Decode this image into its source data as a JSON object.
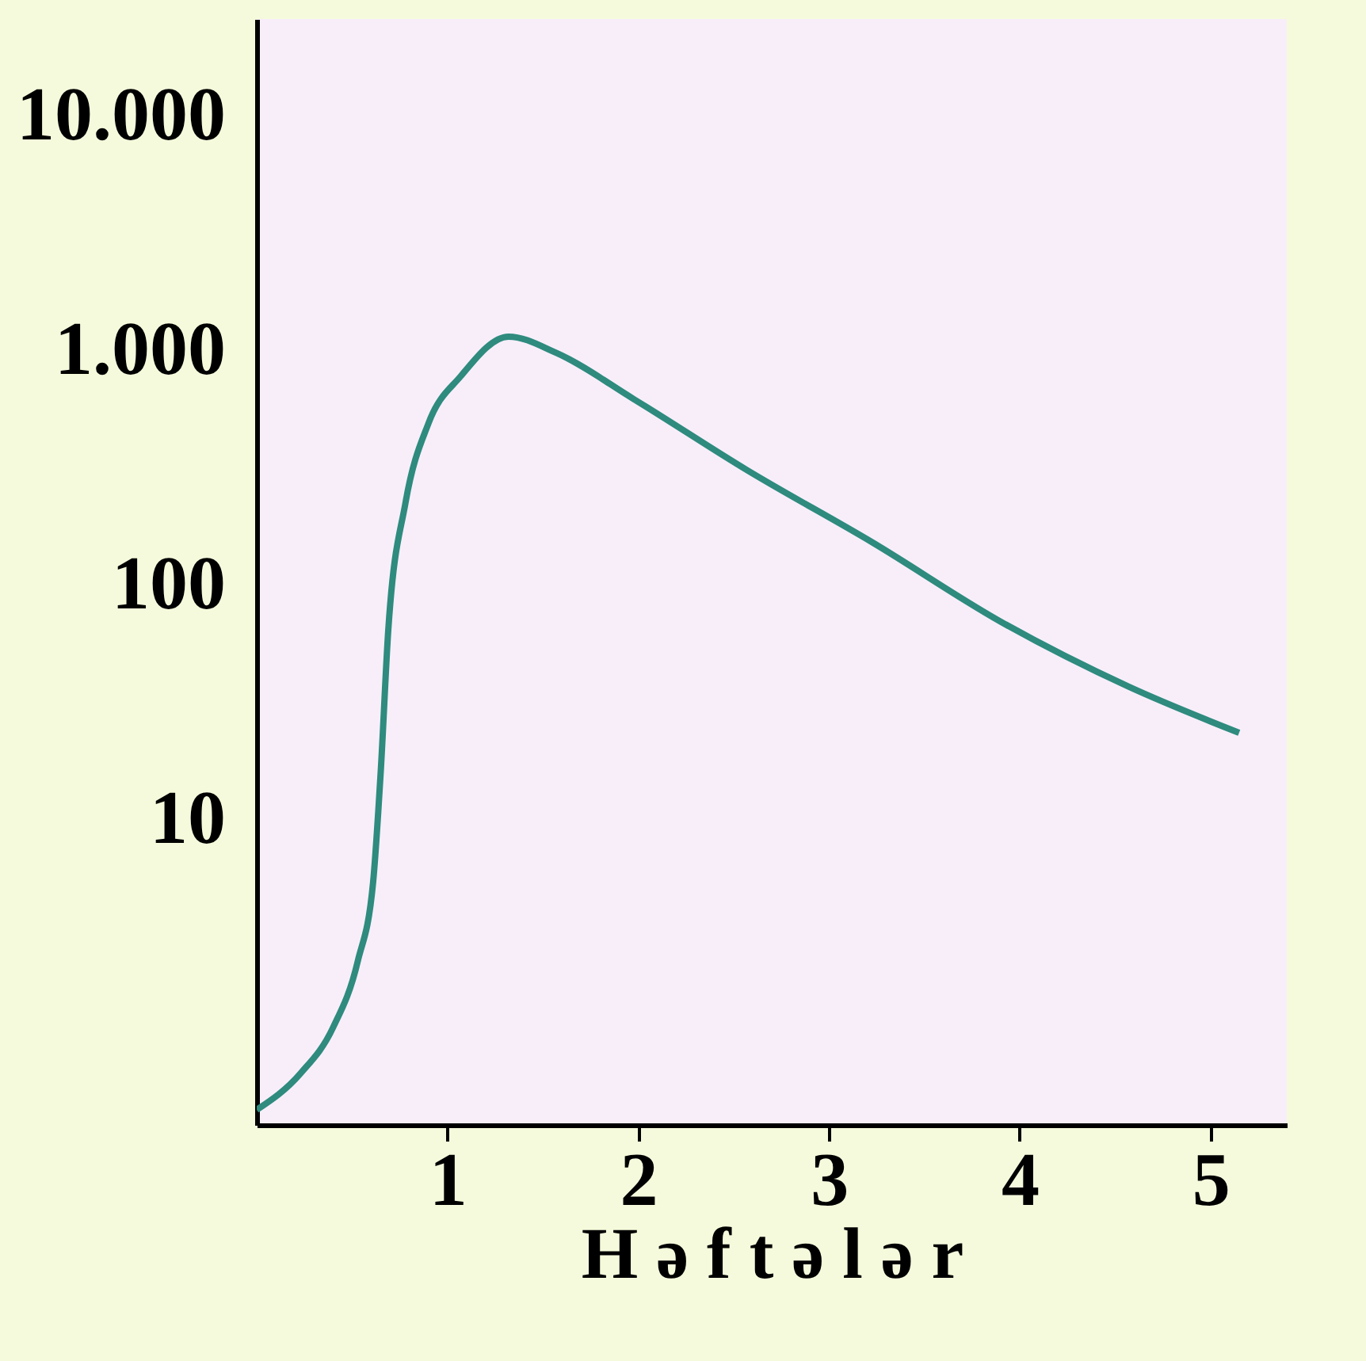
{
  "chart_data": {
    "type": "line",
    "xlabel": "H ə f t ə l ə r",
    "x": [
      0,
      0.23,
      0.4,
      0.53,
      0.61,
      0.65,
      0.69,
      0.78,
      0.9,
      1.07,
      1.32,
      1.57,
      1.98,
      2.57,
      3.23,
      3.9,
      4.57,
      5.15
    ],
    "series": [
      {
        "color": "#2e8b7e",
        "values": [
          0.58,
          0.83,
          1.3,
          2.5,
          5.4,
          16,
          65,
          225,
          490,
          780,
          1150,
          980,
          620,
          310,
          152,
          70,
          37,
          23.5
        ]
      }
    ],
    "xlim": [
      0,
      5.4
    ],
    "xticks": [
      1,
      2,
      3,
      4,
      5
    ],
    "ylim": [
      0.5,
      26000
    ],
    "yticks": [
      10,
      100,
      {
        "value": 1000,
        "label": "1.000"
      },
      {
        "value": 10000,
        "label": "10.000"
      }
    ],
    "log": "y",
    "grid": false,
    "marker": "none",
    "line_style": "solid"
  }
}
